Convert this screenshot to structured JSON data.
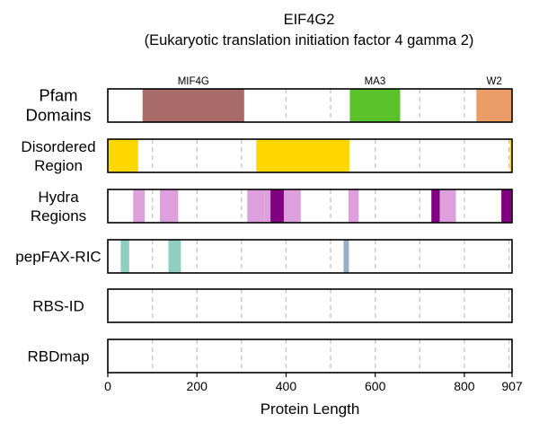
{
  "chart_data": {
    "type": "bar",
    "title": "EIF4G2",
    "subtitle": "(Eukaryotic translation initiation factor 4 gamma 2)",
    "xlabel": "Protein Length",
    "xlim": [
      0,
      907
    ],
    "xticks": [
      0,
      200,
      400,
      600,
      800,
      907
    ],
    "xtick_labels": [
      "0",
      "200",
      "400",
      "600",
      "800",
      "907"
    ],
    "gridlines_at": [
      100,
      200,
      300,
      400,
      500,
      600,
      700,
      800,
      900
    ],
    "grid": "dashed vertical",
    "tracks": [
      {
        "id": "pfam",
        "label_lines": [
          "Pfam",
          "Domains"
        ],
        "segments": [
          {
            "start": 78,
            "end": 306,
            "color": "#a86b69",
            "label": "MIF4G"
          },
          {
            "start": 543,
            "end": 656,
            "color": "#5ac12a",
            "label": "MA3"
          },
          {
            "start": 827,
            "end": 907,
            "color": "#ec9d67",
            "label": "W2"
          }
        ]
      },
      {
        "id": "disordered",
        "label_lines": [
          "Disordered",
          "Region"
        ],
        "segments": [
          {
            "start": 0,
            "end": 68,
            "color": "#ffd700"
          },
          {
            "start": 333,
            "end": 542,
            "color": "#ffd700"
          },
          {
            "start": 902,
            "end": 907,
            "color": "#ffd700"
          }
        ]
      },
      {
        "id": "hydra",
        "label_lines": [
          "Hydra",
          "Regions"
        ],
        "segments": [
          {
            "start": 57,
            "end": 83,
            "color": "#dda0dd"
          },
          {
            "start": 117,
            "end": 158,
            "color": "#dda0dd"
          },
          {
            "start": 313,
            "end": 352,
            "color": "#dda0dd"
          },
          {
            "start": 352,
            "end": 365,
            "color": "#dda0dd"
          },
          {
            "start": 365,
            "end": 395,
            "color": "#800080"
          },
          {
            "start": 395,
            "end": 433,
            "color": "#dda0dd"
          },
          {
            "start": 540,
            "end": 563,
            "color": "#dda0dd"
          },
          {
            "start": 726,
            "end": 745,
            "color": "#800080"
          },
          {
            "start": 745,
            "end": 781,
            "color": "#dda0dd"
          },
          {
            "start": 883,
            "end": 907,
            "color": "#800080"
          }
        ]
      },
      {
        "id": "pepfax",
        "label_lines": [
          "pepFAX-RIC"
        ],
        "segments": [
          {
            "start": 29,
            "end": 48,
            "color": "#8ecfc1"
          },
          {
            "start": 136,
            "end": 164,
            "color": "#8ecfc1"
          },
          {
            "start": 529,
            "end": 541,
            "color": "#98aec7"
          }
        ]
      },
      {
        "id": "rbsid",
        "label_lines": [
          "RBS-ID"
        ],
        "segments": []
      },
      {
        "id": "rbdmap",
        "label_lines": [
          "RBDmap"
        ],
        "segments": []
      }
    ]
  }
}
